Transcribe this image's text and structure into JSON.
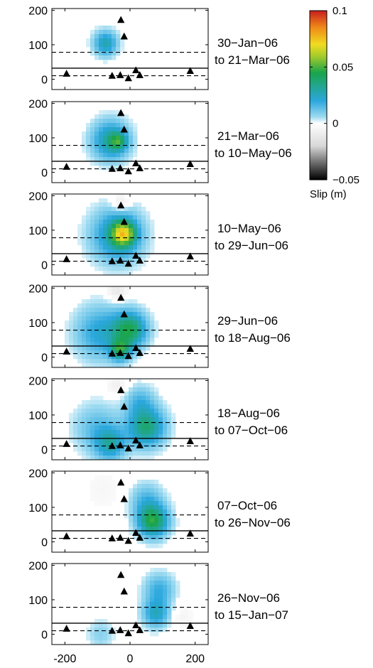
{
  "chart_data": {
    "type": "heatmap",
    "description_free": true,
    "colorbar": {
      "label": "Slip (m)",
      "range": [
        -0.05,
        0.1
      ],
      "ticks": [
        {
          "value": 0.1,
          "label": "0.1"
        },
        {
          "value": 0.05,
          "label": "0.05"
        },
        {
          "value": 0,
          "label": "0"
        },
        {
          "value": -0.05,
          "label": "−0.05"
        }
      ],
      "colors": [
        "#000000",
        "#d8d8d8",
        "#ffffff",
        "#9ad9f0",
        "#2aa7dd",
        "#1aa54a",
        "#a8cc2a",
        "#f0dc20",
        "#f08a18",
        "#c81e1e"
      ]
    },
    "xlim": [
      -240,
      240
    ],
    "ylim": [
      -30,
      205
    ],
    "xticks": [
      -200,
      0,
      200
    ],
    "xtick_labels": [
      "-200",
      "0",
      "200"
    ],
    "yticks": [
      0,
      100,
      200
    ],
    "ytick_labels": [
      "0",
      "100",
      "200"
    ],
    "solid_line_y": 32,
    "dashed_lines_y": [
      78,
      10
    ],
    "stations": [
      {
        "x": -195,
        "y": 16
      },
      {
        "x": -55,
        "y": 10
      },
      {
        "x": -30,
        "y": 12
      },
      {
        "x": -5,
        "y": 3
      },
      {
        "x": 18,
        "y": 26
      },
      {
        "x": 30,
        "y": 12
      },
      {
        "x": -28,
        "y": 172
      },
      {
        "x": -18,
        "y": 124
      },
      {
        "x": 185,
        "y": 24
      }
    ],
    "panels": [
      {
        "date_from": "30−Jan−06",
        "date_to": "to 21−Mar−06",
        "blobs": [
          {
            "x": -75,
            "y": 104,
            "r": 35,
            "amp": 0.028
          }
        ]
      },
      {
        "date_from": "21−Mar−06",
        "date_to": "to 10−May−06",
        "blobs": [
          {
            "x": -60,
            "y": 92,
            "r": 55,
            "amp": 0.032
          },
          {
            "x": -35,
            "y": 90,
            "r": 25,
            "amp": 0.025
          }
        ]
      },
      {
        "date_from": "10−May−06",
        "date_to": "to 29−Jun−06",
        "blobs": [
          {
            "x": -40,
            "y": 85,
            "r": 75,
            "amp": 0.03
          },
          {
            "x": -20,
            "y": 90,
            "r": 35,
            "amp": 0.05
          },
          {
            "x": -30,
            "y": 180,
            "r": 28,
            "amp": -0.012
          }
        ]
      },
      {
        "date_from": "29−Jun−06",
        "date_to": "to 18−Aug−06",
        "blobs": [
          {
            "x": -90,
            "y": 70,
            "r": 75,
            "amp": 0.022
          },
          {
            "x": 0,
            "y": 80,
            "r": 50,
            "amp": 0.04
          },
          {
            "x": -30,
            "y": 20,
            "r": 30,
            "amp": 0.035
          },
          {
            "x": -40,
            "y": 192,
            "r": 30,
            "amp": -0.012
          }
        ]
      },
      {
        "date_from": "18−Aug−06",
        "date_to": "to 07−Oct−06",
        "blobs": [
          {
            "x": -100,
            "y": 60,
            "r": 70,
            "amp": 0.014
          },
          {
            "x": 50,
            "y": 65,
            "r": 55,
            "amp": 0.038
          },
          {
            "x": -60,
            "y": 15,
            "r": 45,
            "amp": 0.025
          },
          {
            "x": 30,
            "y": 140,
            "r": 45,
            "amp": 0.014
          },
          {
            "x": -40,
            "y": 185,
            "r": 30,
            "amp": -0.008
          }
        ]
      },
      {
        "date_from": "07−Oct−06",
        "date_to": "to 26−Nov−06",
        "blobs": [
          {
            "x": 70,
            "y": 60,
            "r": 45,
            "amp": 0.045
          },
          {
            "x": 50,
            "y": 120,
            "r": 50,
            "amp": 0.015
          },
          {
            "x": -80,
            "y": 150,
            "r": 70,
            "amp": -0.004
          }
        ]
      },
      {
        "date_from": "26−Nov−06",
        "date_to": "to 15−Jan−07",
        "blobs": [
          {
            "x": 80,
            "y": 60,
            "r": 40,
            "amp": 0.025
          },
          {
            "x": 90,
            "y": 130,
            "r": 45,
            "amp": 0.018
          },
          {
            "x": -90,
            "y": 0,
            "r": 40,
            "amp": 0.008
          },
          {
            "x": 160,
            "y": 50,
            "r": 40,
            "amp": -0.005
          }
        ]
      }
    ]
  }
}
